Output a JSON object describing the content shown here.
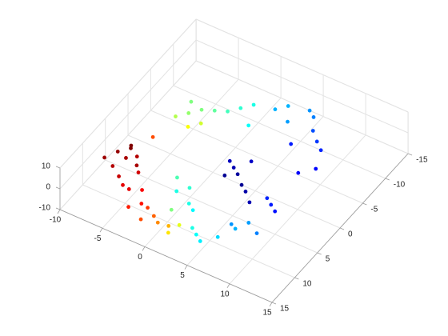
{
  "chart_data": {
    "type": "scatter3",
    "xlim": [
      -10,
      15
    ],
    "ylim": [
      -15,
      15
    ],
    "zlim": [
      -10,
      10
    ],
    "xticks": [
      -10,
      -5,
      0,
      5,
      10,
      15
    ],
    "yticks": [
      -15,
      -10,
      -5,
      0,
      5,
      10,
      15
    ],
    "zticks": [
      -10,
      0,
      10
    ],
    "grid": true,
    "colormap": "jet",
    "clim": [
      0,
      1
    ],
    "x": [
      -7,
      -8,
      -6.5,
      -7.5,
      -6,
      -8.5,
      -7,
      -5.5,
      -6,
      -4.5,
      -3,
      -4,
      -2,
      -3,
      -1,
      -5,
      0,
      1,
      -1,
      2,
      -6,
      2.5,
      3,
      -4,
      -3,
      -5,
      -4,
      -6,
      -3,
      -5.5,
      1,
      -1,
      0,
      -2,
      1,
      0,
      1,
      -1,
      5,
      6,
      4,
      7,
      2,
      3,
      2,
      3,
      4,
      8.5,
      8,
      7,
      10,
      5,
      6,
      8,
      7,
      9,
      9,
      10,
      8,
      10,
      9,
      6,
      3,
      4,
      2,
      5,
      6,
      4,
      7,
      3
    ],
    "y": [
      5,
      6,
      7,
      4,
      5.5,
      8,
      9,
      6.5,
      9.5,
      8,
      10,
      11,
      12,
      13,
      12.5,
      10.5,
      13,
      14,
      14,
      13.5,
      2,
      14.5,
      13,
      -2,
      -3,
      -4,
      -5,
      -3,
      -6,
      -5.5,
      11,
      -8,
      -9,
      -7,
      -6,
      8,
      7,
      6,
      13,
      14,
      12,
      12,
      9,
      10,
      -10,
      -11,
      -9,
      8,
      10,
      9,
      9,
      -12,
      -11,
      -8,
      -9,
      -7,
      4,
      5,
      3,
      -4,
      -2,
      -6,
      1,
      2,
      0,
      3,
      4,
      -1,
      5,
      3
    ],
    "z": [
      1,
      0,
      2,
      -1,
      0,
      1,
      2,
      -1,
      0,
      1,
      0,
      1,
      0,
      -1,
      1,
      0,
      0,
      1,
      -1,
      0,
      1,
      0,
      1,
      0,
      1,
      0,
      1,
      -1,
      0,
      1,
      0,
      0,
      1,
      -1,
      0,
      0,
      1,
      0,
      0,
      1,
      -1,
      0,
      0,
      1,
      0,
      1,
      0,
      0,
      1,
      -1,
      0,
      0,
      1,
      0,
      1,
      0,
      0,
      1,
      -1,
      0,
      1,
      0,
      0,
      1,
      -1,
      0,
      1,
      0,
      0,
      1
    ],
    "c": [
      1,
      0.98,
      0.96,
      1,
      0.95,
      0.97,
      0.95,
      0.96,
      0.93,
      0.92,
      0.88,
      0.9,
      0.86,
      0.85,
      0.82,
      0.9,
      0.78,
      0.74,
      0.8,
      0.7,
      0.8,
      0.65,
      0.6,
      0.62,
      0.58,
      0.52,
      0.5,
      0.55,
      0.47,
      0.5,
      0.5,
      0.42,
      0.4,
      0.44,
      0.38,
      0.4,
      0.42,
      0.45,
      0.38,
      0.36,
      0.4,
      0.34,
      0.4,
      0.37,
      0.3,
      0.3,
      0.28,
      0.28,
      0.3,
      0.27,
      0.25,
      0.27,
      0.25,
      0.18,
      0.2,
      0.16,
      0.15,
      0.14,
      0.16,
      0.13,
      0.12,
      0.15,
      0.05,
      0.03,
      0.06,
      0.02,
      0.04,
      0.07,
      0.05,
      0.02
    ]
  }
}
